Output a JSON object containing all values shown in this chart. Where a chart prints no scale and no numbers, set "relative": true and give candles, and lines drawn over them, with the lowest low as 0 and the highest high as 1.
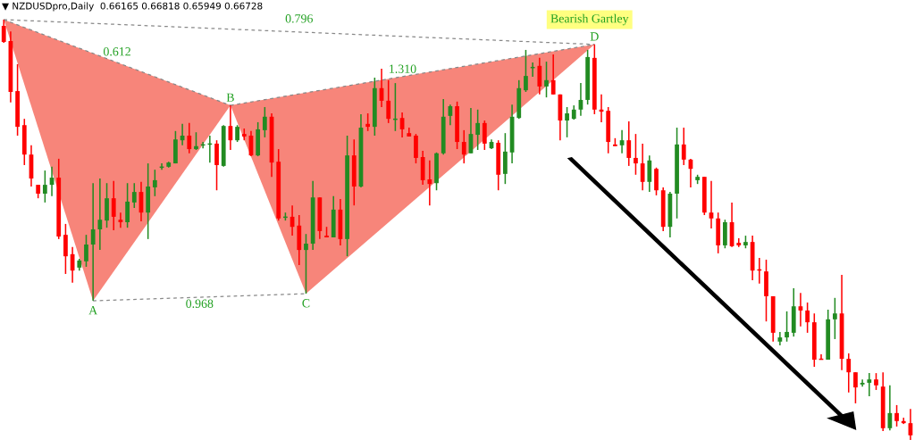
{
  "chart_data": {
    "type": "candlestick",
    "title": "▼ NZDUSDpro,Daily  0.66165 0.66818 0.65949 0.66728",
    "relative": true,
    "grid": false,
    "legend": false,
    "colors": [
      "#ff0000",
      "#ff0000",
      "#ff0000",
      "#ff0000",
      "#ff0000",
      "#ff0000",
      "#228b22",
      "#228b22",
      "#ff0000",
      "#ff0000",
      "#ff0000",
      "#228b22",
      "#228b22",
      "#228b22",
      "#228b22",
      "#228b22",
      "#ff0000",
      "#ff0000",
      "#228b22",
      "#228b22",
      "#ff0000",
      "#228b22",
      "#228b22",
      "#228b22",
      "#228b22",
      "#228b22",
      "#228b22",
      "#ff0000",
      "#228b22",
      "#228b22",
      "#228b22",
      "#ff0000",
      "#228b22",
      "#ff0000",
      "#228b22",
      "#ff0000",
      "#ff0000",
      "#228b22",
      "#228b22",
      "#ff0000",
      "#ff0000",
      "#228b22",
      "#ff0000",
      "#ff0000",
      "#228b22",
      "#228b22",
      "#ff0000",
      "#ff0000",
      "#228b22",
      "#ff0000",
      "#228b22",
      "#ff0000",
      "#228b22",
      "#ff0000",
      "#228b22",
      "#ff0000",
      "#ff0000",
      "#228b22",
      "#ff0000",
      "#ff0000",
      "#ff0000",
      "#ff0000",
      "#ff0000",
      "#228b22",
      "#228b22",
      "#228b22",
      "#ff0000",
      "#ff0000",
      "#228b22",
      "#228b22",
      "#ff0000",
      "#228b22",
      "#ff0000",
      "#228b22",
      "#228b22",
      "#228b22",
      "#228b22",
      "#228b22",
      "#ff0000",
      "#228b22",
      "#ff0000",
      "#ff0000",
      "#228b22",
      "#228b22",
      "#228b22",
      "#228b22",
      "#ff0000",
      "#ff0000",
      "#ff0000",
      "#ff0000",
      "#228b22",
      "#ff0000",
      "#ff0000",
      "#ff0000",
      "#228b22",
      "#ff0000",
      "#ff0000",
      "#228b22",
      "#228b22",
      "#ff0000",
      "#ff0000",
      "#228b22",
      "#ff0000",
      "#ff0000",
      "#ff0000",
      "#228b22",
      "#ff0000",
      "#ff0000",
      "#228b22",
      "#ff0000",
      "#ff0000",
      "#ff0000",
      "#ff0000",
      "#228b22",
      "#228b22",
      "#228b22",
      "#ff0000",
      "#ff0000",
      "#ff0000",
      "#ff0000",
      "#228b22",
      "#228b22",
      "#ff0000",
      "#ff0000",
      "#ff0000",
      "#228b22",
      "#228b22",
      "#ff0000",
      "#ff0000",
      "#228b22",
      "#ff0000",
      "#ff0000",
      "#ff0000"
    ],
    "categories": [
      null,
      null,
      null,
      null,
      null,
      null,
      null,
      null,
      null,
      null,
      null,
      null,
      null,
      null,
      null,
      null,
      null,
      null,
      null,
      null,
      null,
      null,
      null,
      null,
      null,
      null,
      null,
      null,
      null,
      null,
      null,
      null,
      null,
      null,
      null,
      null,
      null,
      null,
      null,
      null,
      null,
      null,
      null,
      null,
      null,
      null,
      null,
      null,
      null,
      null,
      null,
      null,
      null,
      null,
      null,
      null,
      null,
      null,
      null,
      null,
      null,
      null,
      null,
      null,
      null,
      null,
      null,
      null,
      null,
      null,
      null,
      null,
      null,
      null,
      null,
      null,
      null,
      null,
      null,
      null,
      null,
      null,
      null,
      null,
      null,
      null,
      null,
      null,
      null,
      null,
      null,
      null,
      null,
      null,
      null,
      null,
      null,
      null,
      null,
      null,
      null,
      null,
      null,
      null,
      null,
      null,
      null,
      null,
      null,
      null,
      null,
      null,
      null,
      null,
      null,
      null,
      null,
      null,
      null,
      null,
      null,
      null,
      null,
      null,
      null,
      null,
      null,
      null,
      null,
      null,
      null,
      null,
      null
    ],
    "ohlc": [
      [
        0.985,
        1,
        0.945,
        0.947
      ],
      [
        0.949,
        0.972,
        0.803,
        0.828
      ],
      [
        0.83,
        0.894,
        0.724,
        0.745
      ],
      [
        0.749,
        0.764,
        0.654,
        0.679
      ],
      [
        0.679,
        0.701,
        0.603,
        0.622
      ],
      [
        0.607,
        0.607,
        0.575,
        0.586
      ],
      [
        0.586,
        0.641,
        0.565,
        0.607
      ],
      [
        0.607,
        0.65,
        0.58,
        0.624
      ],
      [
        0.624,
        0.669,
        0.478,
        0.484
      ],
      [
        0.488,
        0.514,
        0.395,
        0.437
      ],
      [
        0.442,
        0.459,
        0.374,
        0.403
      ],
      [
        0.41,
        0.431,
        0.403,
        0.427
      ],
      [
        0.425,
        0.488,
        0.412,
        0.465
      ],
      [
        0.465,
        0.611,
        0.331,
        0.501
      ],
      [
        0.501,
        0.622,
        0.452,
        0.524
      ],
      [
        0.522,
        0.611,
        0.505,
        0.575
      ],
      [
        0.575,
        0.616,
        0.499,
        0.531
      ],
      [
        0.524,
        0.541,
        0.505,
        0.518
      ],
      [
        0.518,
        0.611,
        0.505,
        0.567
      ],
      [
        0.565,
        0.611,
        0.552,
        0.59
      ],
      [
        0.59,
        0.614,
        0.52,
        0.541
      ],
      [
        0.541,
        0.658,
        0.478,
        0.603
      ],
      [
        0.601,
        0.643,
        0.58,
        0.618
      ],
      [
        0.648,
        0.658,
        0.643,
        0.65
      ],
      [
        0.65,
        0.662,
        0.648,
        0.66
      ],
      [
        0.658,
        0.735,
        0.658,
        0.715
      ],
      [
        0.713,
        0.752,
        0.701,
        0.724
      ],
      [
        0.724,
        0.754,
        0.682,
        0.692
      ],
      [
        0.692,
        0.732,
        0.69,
        0.699
      ],
      [
        0.701,
        0.709,
        0.694,
        0.703
      ],
      [
        0.703,
        0.724,
        0.66,
        0.705
      ],
      [
        0.705,
        0.713,
        0.594,
        0.654
      ],
      [
        0.652,
        0.749,
        0.65,
        0.747
      ],
      [
        0.747,
        0.796,
        0.69,
        0.713
      ],
      [
        0.713,
        0.749,
        0.709,
        0.745
      ],
      [
        0.728,
        0.741,
        0.713,
        0.722
      ],
      [
        0.724,
        0.735,
        0.675,
        0.677
      ],
      [
        0.677,
        0.756,
        0.675,
        0.739
      ],
      [
        0.737,
        0.792,
        0.72,
        0.769
      ],
      [
        0.769,
        0.777,
        0.626,
        0.66
      ],
      [
        0.662,
        0.692,
        0.522,
        0.527
      ],
      [
        0.529,
        0.541,
        0.522,
        0.531
      ],
      [
        0.531,
        0.558,
        0.486,
        0.507
      ],
      [
        0.51,
        0.535,
        0.416,
        0.452
      ],
      [
        0.452,
        0.49,
        0.348,
        0.467
      ],
      [
        0.467,
        0.616,
        0.452,
        0.577
      ],
      [
        0.577,
        0.577,
        0.478,
        0.497
      ],
      [
        0.486,
        0.507,
        0.482,
        0.482
      ],
      [
        0.482,
        0.58,
        0.482,
        0.548
      ],
      [
        0.548,
        0.573,
        0.463,
        0.478
      ],
      [
        0.478,
        0.724,
        0.437,
        0.677
      ],
      [
        0.677,
        0.715,
        0.558,
        0.603
      ],
      [
        0.603,
        0.775,
        0.601,
        0.743
      ],
      [
        0.752,
        0.777,
        0.735,
        0.745
      ],
      [
        0.745,
        0.862,
        0.724,
        0.837
      ],
      [
        0.837,
        0.883,
        0.792,
        0.807
      ],
      [
        0.807,
        0.856,
        0.754,
        0.764
      ],
      [
        0.762,
        0.849,
        0.735,
        0.764
      ],
      [
        0.766,
        0.779,
        0.72,
        0.739
      ],
      [
        0.73,
        0.743,
        0.722,
        0.722
      ],
      [
        0.724,
        0.728,
        0.658,
        0.671
      ],
      [
        0.673,
        0.688,
        0.607,
        0.618
      ],
      [
        0.62,
        0.665,
        0.558,
        0.609
      ],
      [
        0.611,
        0.684,
        0.594,
        0.682
      ],
      [
        0.682,
        0.811,
        0.679,
        0.769
      ],
      [
        0.771,
        0.798,
        0.749,
        0.794
      ],
      [
        0.794,
        0.805,
        0.692,
        0.709
      ],
      [
        0.709,
        0.737,
        0.658,
        0.679
      ],
      [
        0.682,
        0.79,
        0.682,
        0.728
      ],
      [
        0.726,
        0.786,
        0.69,
        0.754
      ],
      [
        0.754,
        0.76,
        0.69,
        0.705
      ],
      [
        0.694,
        0.715,
        0.692,
        0.709
      ],
      [
        0.707,
        0.713,
        0.594,
        0.631
      ],
      [
        0.633,
        0.73,
        0.609,
        0.686
      ],
      [
        0.684,
        0.798,
        0.658,
        0.769
      ],
      [
        0.766,
        0.856,
        0.764,
        0.837
      ],
      [
        0.832,
        0.928,
        0.828,
        0.866
      ],
      [
        0.885,
        0.898,
        0.864,
        0.887
      ],
      [
        0.89,
        0.909,
        0.822,
        0.841
      ],
      [
        0.841,
        0.9,
        0.815,
        0.856
      ],
      [
        0.856,
        0.917,
        0.822,
        0.822
      ],
      [
        0.822,
        0.822,
        0.713,
        0.76
      ],
      [
        0.76,
        0.792,
        0.72,
        0.777
      ],
      [
        0.764,
        0.796,
        0.762,
        0.786
      ],
      [
        0.786,
        0.849,
        0.771,
        0.809
      ],
      [
        0.809,
        0.928,
        0.798,
        0.911
      ],
      [
        0.909,
        0.941,
        0.775,
        0.786
      ],
      [
        0.786,
        0.822,
        0.756,
        0.781
      ],
      [
        0.783,
        0.792,
        0.682,
        0.709
      ],
      [
        0.703,
        0.718,
        0.699,
        0.699
      ],
      [
        0.701,
        0.737,
        0.682,
        0.713
      ],
      [
        0.713,
        0.758,
        0.652,
        0.671
      ],
      [
        0.671,
        0.728,
        0.631,
        0.658
      ],
      [
        0.658,
        0.705,
        0.594,
        0.614
      ],
      [
        0.614,
        0.677,
        0.59,
        0.665
      ],
      [
        0.645,
        0.648,
        0.582,
        0.594
      ],
      [
        0.594,
        0.601,
        0.497,
        0.507
      ],
      [
        0.507,
        0.59,
        0.482,
        0.586
      ],
      [
        0.586,
        0.743,
        0.527,
        0.703
      ],
      [
        0.703,
        0.743,
        0.654,
        0.667
      ],
      [
        0.667,
        0.669,
        0.601,
        0.645
      ],
      [
        0.618,
        0.631,
        0.609,
        0.626
      ],
      [
        0.626,
        0.626,
        0.535,
        0.541
      ],
      [
        0.541,
        0.616,
        0.503,
        0.527
      ],
      [
        0.527,
        0.541,
        0.444,
        0.463
      ],
      [
        0.463,
        0.524,
        0.456,
        0.518
      ],
      [
        0.518,
        0.565,
        0.459,
        0.461
      ],
      [
        0.469,
        0.48,
        0.459,
        0.463
      ],
      [
        0.463,
        0.486,
        0.456,
        0.471
      ],
      [
        0.471,
        0.486,
        0.38,
        0.403
      ],
      [
        0.406,
        0.433,
        0.372,
        0.403
      ],
      [
        0.401,
        0.429,
        0.282,
        0.342
      ],
      [
        0.342,
        0.342,
        0.234,
        0.255
      ],
      [
        0.234,
        0.257,
        0.225,
        0.244
      ],
      [
        0.244,
        0.306,
        0.234,
        0.257
      ],
      [
        0.255,
        0.361,
        0.246,
        0.318
      ],
      [
        0.318,
        0.35,
        0.27,
        0.308
      ],
      [
        0.308,
        0.327,
        0.255,
        0.28
      ],
      [
        0.28,
        0.301,
        0.174,
        0.191
      ],
      [
        0.193,
        0.204,
        0.191,
        0.191
      ],
      [
        0.191,
        0.31,
        0.191,
        0.287
      ],
      [
        0.287,
        0.338,
        0.24,
        0.301
      ],
      [
        0.301,
        0.393,
        0.166,
        0.193
      ],
      [
        0.193,
        0.206,
        0.113,
        0.161
      ],
      [
        0.161,
        0.161,
        0.087,
        0.125
      ],
      [
        0.132,
        0.144,
        0.127,
        0.136
      ],
      [
        0.136,
        0.159,
        0.104,
        0.144
      ],
      [
        0.144,
        0.159,
        0.119,
        0.13
      ],
      [
        0.127,
        0.161,
        0.021,
        0.028
      ],
      [
        0.028,
        0.13,
        0.023,
        0.064
      ],
      [
        0.064,
        0.083,
        0.032,
        0.045
      ],
      [
        0.045,
        0.053,
        0.038,
        0.04
      ],
      [
        0.04,
        0.074,
        0,
        0.011
      ]
    ],
    "annotations": [
      {
        "text": "A",
        "y": 0.331
      },
      {
        "text": "B",
        "y": 0.796
      },
      {
        "text": "C",
        "y": 0.348
      },
      {
        "text": "D",
        "y": 0.941
      },
      "0.612",
      "0.796",
      "0.968",
      "1.310",
      "Bearish Gartley"
    ]
  }
}
